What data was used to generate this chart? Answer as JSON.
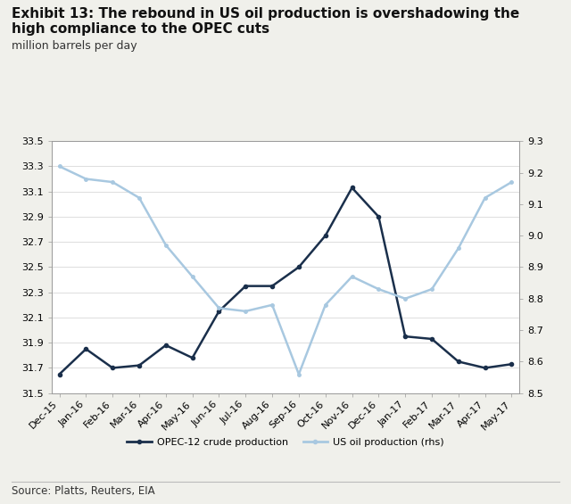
{
  "title_line1": "Exhibit 13: The rebound in US oil production is overshadowing the",
  "title_line2": "high compliance to the OPEC cuts",
  "subtitle": "million barrels per day",
  "source": "Source: Platts, Reuters, EIA",
  "x_labels": [
    "Dec-15",
    "Jan-16",
    "Feb-16",
    "Mar-16",
    "Apr-16",
    "May-16",
    "Jun-16",
    "Jul-16",
    "Aug-16",
    "Sep-16",
    "Oct-16",
    "Nov-16",
    "Dec-16",
    "Jan-17",
    "Feb-17",
    "Mar-17",
    "Apr-17",
    "May-17"
  ],
  "opec_values": [
    31.65,
    31.85,
    31.7,
    31.72,
    31.88,
    31.78,
    32.15,
    32.35,
    32.35,
    32.5,
    32.75,
    33.13,
    32.9,
    31.95,
    31.93,
    31.75,
    31.7,
    31.73
  ],
  "us_values": [
    9.22,
    9.18,
    9.17,
    9.12,
    8.97,
    8.87,
    8.77,
    8.76,
    8.78,
    8.56,
    8.78,
    8.87,
    8.83,
    8.8,
    8.83,
    8.96,
    9.12,
    9.17
  ],
  "opec_color": "#1a2f4b",
  "us_color": "#a8c8e0",
  "left_ylim": [
    31.5,
    33.5
  ],
  "right_ylim": [
    8.5,
    9.3
  ],
  "left_yticks": [
    31.5,
    31.7,
    31.9,
    32.1,
    32.3,
    32.5,
    32.7,
    32.9,
    33.1,
    33.3,
    33.5
  ],
  "right_yticks": [
    8.5,
    8.6,
    8.7,
    8.8,
    8.9,
    9.0,
    9.1,
    9.2,
    9.3
  ],
  "bg_color": "#f0f0eb",
  "plot_bg_color": "#ffffff",
  "legend_opec": "OPEC-12 crude production",
  "legend_us": "US oil production (rhs)",
  "title_fontsize": 11,
  "subtitle_fontsize": 9,
  "tick_fontsize": 8,
  "source_fontsize": 8.5
}
